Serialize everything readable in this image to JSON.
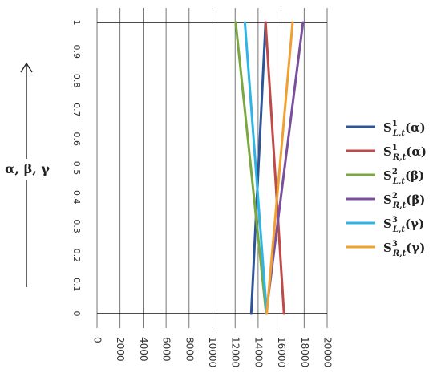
{
  "chart_data": {
    "type": "line",
    "title": "",
    "xlabel": "",
    "ylabel": "α, β, γ",
    "xlim": [
      0,
      20000
    ],
    "ylim": [
      0,
      1
    ],
    "x_ticks": [
      "0",
      "2000",
      "4000",
      "6000",
      "8000",
      "10000",
      "12000",
      "14000",
      "16000",
      "18000",
      "20000"
    ],
    "y_ticks": [
      "0",
      "0.1",
      "0.2",
      "0.3",
      "0.4",
      "0.5",
      "0.6",
      "0.7",
      "0.8",
      "0.9",
      "1"
    ],
    "grid": "vertical",
    "legend_position": "right",
    "series": [
      {
        "name": "S_{L,t}^1(α)",
        "base": "S",
        "sup": "1",
        "sub": "L,t",
        "arg": "(α)",
        "color": "#2e5597",
        "points": [
          [
            13400,
            0
          ],
          [
            14650,
            1
          ]
        ]
      },
      {
        "name": "S_{R,t}^1(α)",
        "base": "S",
        "sup": "1",
        "sub": "R,t",
        "arg": "(α)",
        "color": "#be4b48",
        "points": [
          [
            16250,
            0
          ],
          [
            14650,
            1
          ]
        ]
      },
      {
        "name": "S_{L,t}^2(β)",
        "base": "S",
        "sup": "2",
        "sub": "L,t",
        "arg": "(β)",
        "color": "#7aa840",
        "points": [
          [
            14700,
            0
          ],
          [
            12050,
            1
          ]
        ]
      },
      {
        "name": "S_{R,t}^2(β)",
        "base": "S",
        "sup": "2",
        "sub": "R,t",
        "arg": "(β)",
        "color": "#7a4f9e",
        "points": [
          [
            14700,
            0
          ],
          [
            17900,
            1
          ]
        ]
      },
      {
        "name": "S_{L,t}^3(γ)",
        "base": "S",
        "sup": "3",
        "sub": "L,t",
        "arg": "(γ)",
        "color": "#2fb4e6",
        "points": [
          [
            14750,
            0
          ],
          [
            12850,
            1
          ]
        ]
      },
      {
        "name": "S_{R,t}^3(γ)",
        "base": "S",
        "sup": "3",
        "sub": "R,t",
        "arg": "(γ)",
        "color": "#f0a030",
        "points": [
          [
            14750,
            0
          ],
          [
            17000,
            1
          ]
        ]
      }
    ]
  }
}
